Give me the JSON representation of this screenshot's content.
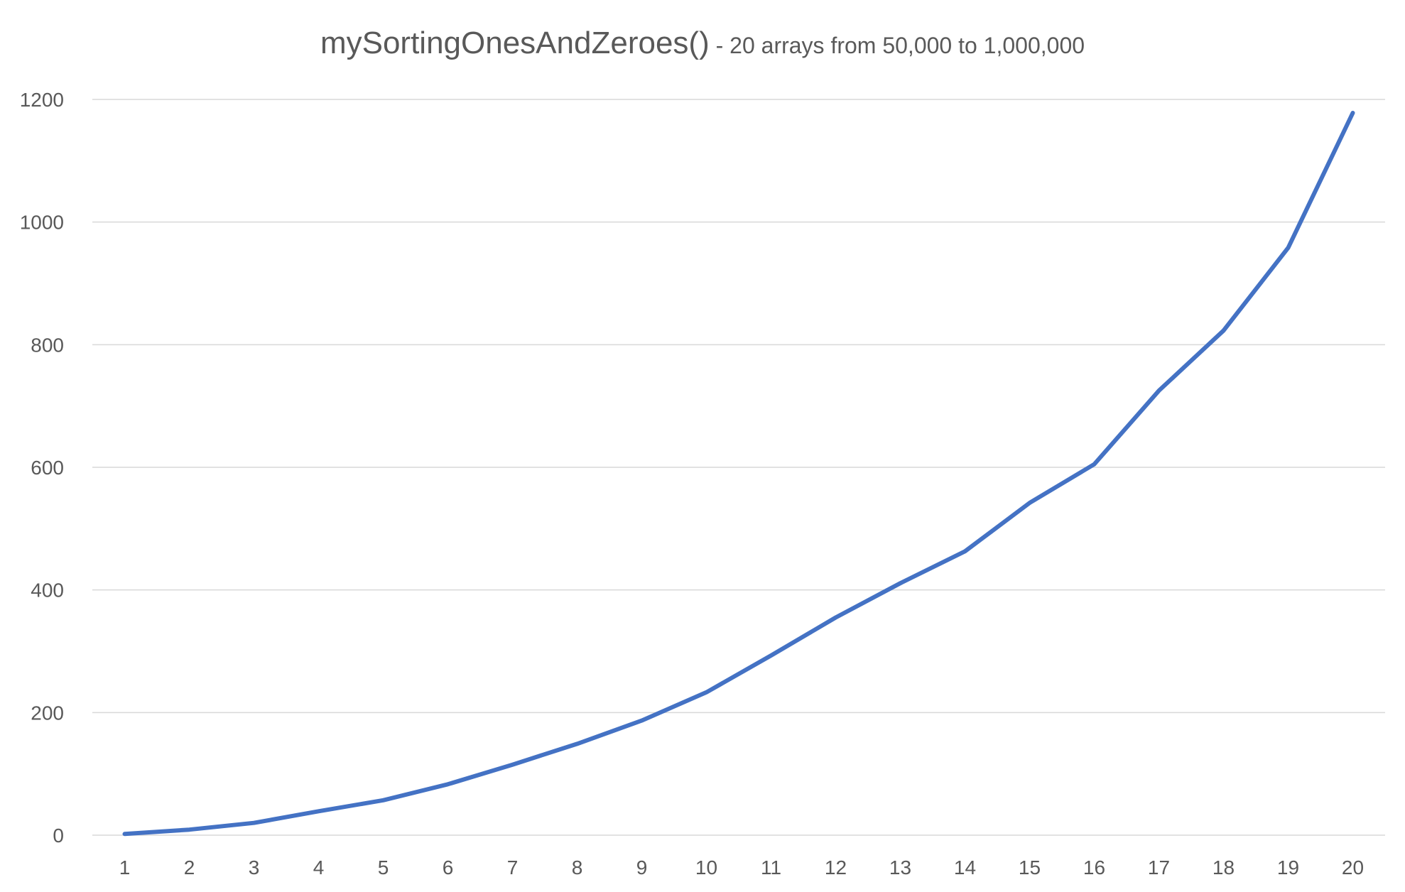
{
  "chart_data": {
    "type": "line",
    "title": "mySortingOnesAndZeroes()",
    "subtitle": " - 20 arrays from 50,000 to 1,000,000",
    "xlabel": "",
    "ylabel": "",
    "categories": [
      "1",
      "2",
      "3",
      "4",
      "5",
      "6",
      "7",
      "8",
      "9",
      "10",
      "11",
      "12",
      "13",
      "14",
      "15",
      "16",
      "17",
      "18",
      "19",
      "20"
    ],
    "series": [
      {
        "values": [
          2,
          9,
          20,
          39,
          57,
          83,
          115,
          149,
          187,
          233,
          293,
          355,
          411,
          463,
          542,
          605,
          725,
          823,
          958,
          1178
        ]
      }
    ],
    "ylim": [
      0,
      1200
    ],
    "yticks": [
      0,
      200,
      400,
      600,
      800,
      1000,
      1200
    ],
    "grid": true,
    "legend": "none",
    "colors": {
      "series": "#4472c4",
      "grid": "#d9d9d9",
      "text": "#595959"
    }
  }
}
